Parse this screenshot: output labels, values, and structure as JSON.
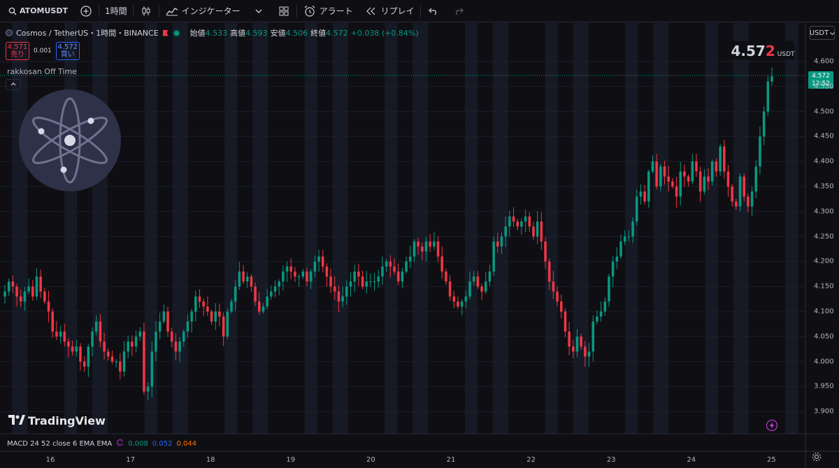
{
  "toolbar": {
    "symbol": "ATOMUSDT",
    "interval": "1時間",
    "indicators_label": "インジケーター",
    "alert_label": "アラート",
    "replay_label": "リプレイ"
  },
  "legend": {
    "symbol_title": "Cosmos / TetherUS・1時間・BINANCE",
    "open_label": "始値",
    "open": "4.533",
    "high_label": "高値",
    "high": "4.593",
    "low_label": "安値",
    "low": "4.506",
    "close_label": "終値",
    "close": "4.572",
    "change": "+0.038 (+0.84%)"
  },
  "trade": {
    "sell_price": "4.571",
    "sell_label": "売り",
    "spread": "0.001",
    "buy_price": "4.572",
    "buy_label": "買い"
  },
  "indicator_name": "rakkosan Off Time",
  "currency_button": "USDT",
  "last_price": {
    "main": "4.57",
    "last_digit": "2",
    "currency": "USDT",
    "tag_price": "4.572",
    "countdown": "12:52"
  },
  "macd": {
    "label": "MACD 24 52 close 6 EMA EMA",
    "v1": "0.008",
    "v2": "0.052",
    "v3": "0.044"
  },
  "brand": "TradingView",
  "icons": [
    "search-icon",
    "add-icon",
    "candles-icon",
    "indicators-icon",
    "templates-icon",
    "alarm-icon",
    "replay-icon",
    "undo-icon",
    "redo-icon",
    "settings-icon",
    "bolt-icon"
  ],
  "colors": {
    "up": "#089981",
    "down": "#f23645",
    "background": "#0f0f13",
    "offtime_band": "#161a25"
  },
  "chart_data": {
    "type": "candlestick",
    "title": "Cosmos / TetherUS・1時間・BINANCE",
    "ylim": [
      3.87,
      4.63
    ],
    "y_ticks": [
      "4.600",
      "4.550",
      "4.500",
      "4.450",
      "4.400",
      "4.350",
      "4.300",
      "4.250",
      "4.200",
      "4.150",
      "4.100",
      "4.050",
      "4.000",
      "3.950",
      "3.900"
    ],
    "x_ticks": [
      "16",
      "17",
      "18",
      "19",
      "20",
      "21",
      "22",
      "23",
      "24",
      "25"
    ],
    "closes": [
      4.14,
      4.16,
      4.15,
      4.13,
      4.12,
      4.14,
      4.15,
      4.13,
      4.17,
      4.14,
      4.12,
      4.1,
      4.06,
      4.05,
      4.06,
      4.04,
      4.03,
      4.02,
      4.03,
      4.0,
      3.99,
      4.03,
      4.06,
      4.08,
      4.04,
      4.02,
      4.01,
      4.0,
      4.0,
      3.98,
      4.02,
      4.04,
      4.03,
      4.05,
      4.06,
      3.94,
      3.95,
      4.02,
      4.06,
      4.08,
      4.1,
      4.06,
      4.04,
      4.02,
      4.04,
      4.06,
      4.08,
      4.1,
      4.13,
      4.12,
      4.11,
      4.1,
      4.08,
      4.1,
      4.09,
      4.05,
      4.1,
      4.12,
      4.15,
      4.18,
      4.16,
      4.17,
      4.15,
      4.12,
      4.1,
      4.11,
      4.13,
      4.14,
      4.15,
      4.16,
      4.18,
      4.19,
      4.18,
      4.17,
      4.17,
      4.18,
      4.16,
      4.18,
      4.2,
      4.21,
      4.19,
      4.17,
      4.15,
      4.14,
      4.12,
      4.13,
      4.15,
      4.16,
      4.18,
      4.17,
      4.15,
      4.16,
      4.16,
      4.16,
      4.17,
      4.19,
      4.2,
      4.19,
      4.18,
      4.16,
      4.18,
      4.2,
      4.21,
      4.24,
      4.23,
      4.22,
      4.24,
      4.23,
      4.24,
      4.21,
      4.18,
      4.16,
      4.13,
      4.12,
      4.11,
      4.12,
      4.13,
      4.16,
      4.17,
      4.15,
      4.14,
      4.16,
      4.18,
      4.24,
      4.23,
      4.25,
      4.27,
      4.29,
      4.28,
      4.27,
      4.28,
      4.29,
      4.27,
      4.25,
      4.28,
      4.24,
      4.2,
      4.16,
      4.14,
      4.12,
      4.1,
      4.06,
      4.03,
      4.02,
      4.05,
      4.03,
      4.01,
      4.02,
      4.08,
      4.09,
      4.1,
      4.12,
      4.17,
      4.2,
      4.21,
      4.24,
      4.25,
      4.25,
      4.28,
      4.33,
      4.34,
      4.32,
      4.38,
      4.4,
      4.35,
      4.39,
      4.37,
      4.36,
      4.35,
      4.33,
      4.38,
      4.37,
      4.36,
      4.4,
      4.38,
      4.34,
      4.37,
      4.36,
      4.4,
      4.38,
      4.43,
      4.38,
      4.35,
      4.32,
      4.31,
      4.37,
      4.33,
      4.31,
      4.34,
      4.39,
      4.45,
      4.5,
      4.56,
      4.57
    ]
  }
}
